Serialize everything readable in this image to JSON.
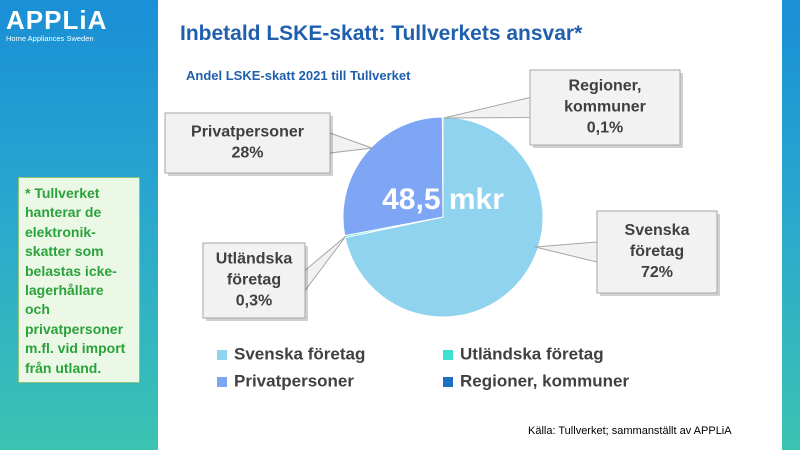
{
  "logo": {
    "word": "APPLiA",
    "tagline": "Home Appliances Sweden"
  },
  "title": "Inbetald LSKE-skatt: Tullverkets ansvar*",
  "subtitle": "Andel LSKE-skatt 2021 till Tullverket",
  "note": "* Tullverket\nhanterar de\nelektronik-\nskatter som\nbelastas icke-\nlagerhållare\noch\nprivatpersoner\nm.fl. vid import\nfrån utland.",
  "source": "Källa: Tullverket; sammanställt av APPLiA",
  "chart_data": {
    "type": "pie",
    "center_label": "48,5 mkr",
    "legend_placement": "bottom",
    "series": [
      {
        "name": "Svenska företag",
        "value": 72,
        "label_lines": [
          "Svenska",
          "företag",
          "72%"
        ],
        "color": "#8fd3ef"
      },
      {
        "name": "Utländska företag",
        "value": 0.3,
        "label_lines": [
          "Utländska",
          "företag",
          "0,3%"
        ],
        "color": "#3fe0d0"
      },
      {
        "name": "Privatpersoner",
        "value": 28,
        "label_lines": [
          "Privatpersoner",
          "28%"
        ],
        "color": "#7ea6f5"
      },
      {
        "name": "Regioner, kommuner",
        "value": 0.1,
        "label_lines": [
          "Regioner,",
          "kommuner",
          "0,1%"
        ],
        "color": "#1f6fc7"
      }
    ]
  }
}
